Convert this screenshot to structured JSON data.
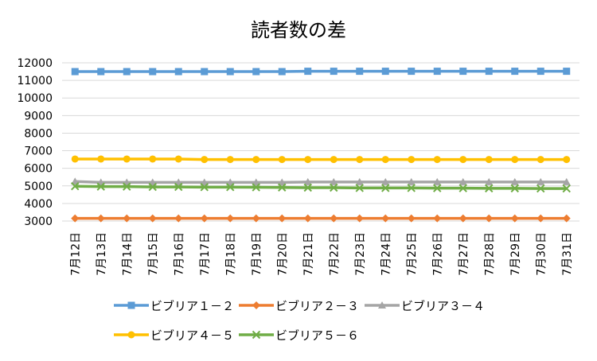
{
  "chart_data": {
    "type": "line",
    "title": "読者数の差",
    "xlabel": "",
    "ylabel": "",
    "ylim": [
      3000,
      12000
    ],
    "yticks": [
      3000,
      4000,
      5000,
      6000,
      7000,
      8000,
      9000,
      10000,
      11000,
      12000
    ],
    "grid": true,
    "legend_position": "bottom",
    "categories": [
      "7月12日",
      "7月13日",
      "7月14日",
      "7月15日",
      "7月16日",
      "7月17日",
      "7月18日",
      "7月19日",
      "7月20日",
      "7月21日",
      "7月22日",
      "7月23日",
      "7月24日",
      "7月25日",
      "7月26日",
      "7月27日",
      "7月28日",
      "7月29日",
      "7月30日",
      "7月31日"
    ],
    "series": [
      {
        "name": "ビブリア１－２",
        "color": "#5B9BD5",
        "marker": "square",
        "values": [
          11500,
          11500,
          11500,
          11500,
          11500,
          11500,
          11500,
          11500,
          11500,
          11520,
          11520,
          11520,
          11520,
          11520,
          11520,
          11520,
          11520,
          11520,
          11520,
          11520
        ]
      },
      {
        "name": "ビブリア２－３",
        "color": "#ED7D31",
        "marker": "diamond",
        "values": [
          3150,
          3150,
          3150,
          3150,
          3150,
          3150,
          3150,
          3150,
          3150,
          3150,
          3150,
          3150,
          3150,
          3150,
          3150,
          3150,
          3150,
          3150,
          3150,
          3150
        ]
      },
      {
        "name": "ビブリア３－４",
        "color": "#A5A5A5",
        "marker": "triangle",
        "values": [
          5250,
          5200,
          5200,
          5200,
          5200,
          5200,
          5200,
          5200,
          5200,
          5220,
          5220,
          5220,
          5220,
          5220,
          5220,
          5220,
          5220,
          5220,
          5220,
          5220
        ]
      },
      {
        "name": "ビブリア４－５",
        "color": "#FFC000",
        "marker": "circle",
        "values": [
          6530,
          6530,
          6530,
          6530,
          6530,
          6500,
          6500,
          6500,
          6500,
          6500,
          6500,
          6500,
          6500,
          6500,
          6500,
          6500,
          6500,
          6500,
          6500,
          6500
        ]
      },
      {
        "name": "ビブリア５－６",
        "color": "#70AD47",
        "marker": "x",
        "values": [
          4980,
          4960,
          4960,
          4940,
          4940,
          4930,
          4930,
          4920,
          4910,
          4900,
          4900,
          4880,
          4880,
          4880,
          4870,
          4870,
          4860,
          4860,
          4850,
          4850
        ]
      }
    ]
  }
}
